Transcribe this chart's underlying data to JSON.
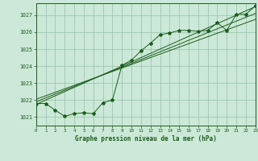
{
  "title": "Graphe pression niveau de la mer (hPa)",
  "bg_color": "#cce8d8",
  "grid_color": "#90c4a4",
  "line_color": "#1a5c1a",
  "x_min": 0,
  "x_max": 23,
  "y_min": 1020.5,
  "y_max": 1027.7,
  "y_ticks": [
    1021,
    1022,
    1023,
    1024,
    1025,
    1026,
    1027
  ],
  "x_ticks": [
    0,
    1,
    2,
    3,
    4,
    5,
    6,
    7,
    8,
    9,
    10,
    11,
    12,
    13,
    14,
    15,
    16,
    17,
    18,
    19,
    20,
    21,
    22,
    23
  ],
  "main_line_x": [
    0,
    1,
    2,
    3,
    4,
    5,
    6,
    7,
    8,
    9,
    10,
    11,
    12,
    13,
    14,
    15,
    16,
    17,
    18,
    19,
    20,
    21,
    22,
    23
  ],
  "main_line_y": [
    1021.8,
    1021.8,
    1021.4,
    1021.05,
    1021.2,
    1021.25,
    1021.2,
    1021.85,
    1022.0,
    1024.05,
    1024.35,
    1024.9,
    1025.35,
    1025.85,
    1025.95,
    1026.1,
    1026.1,
    1026.05,
    1026.1,
    1026.55,
    1026.1,
    1027.05,
    1027.05,
    1027.55
  ],
  "reg_line1_x": [
    0,
    23
  ],
  "reg_line1_y": [
    1021.75,
    1027.5
  ],
  "reg_line2_x": [
    0,
    23
  ],
  "reg_line2_y": [
    1021.9,
    1027.1
  ],
  "reg_line3_x": [
    0,
    23
  ],
  "reg_line3_y": [
    1022.05,
    1026.75
  ]
}
